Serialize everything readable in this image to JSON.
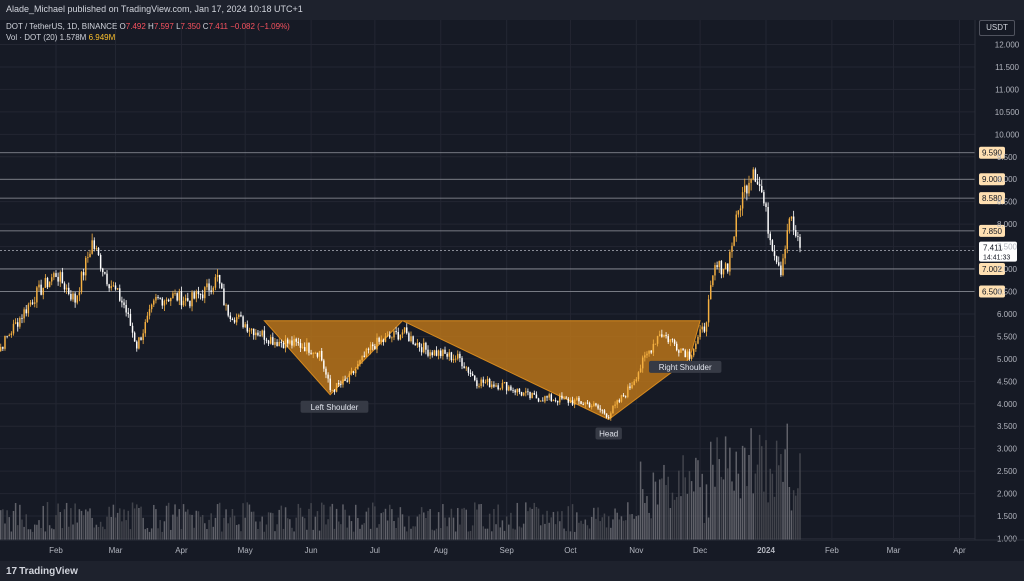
{
  "header": {
    "published": "Alade_Michael published on TradingView.com, Jan 17, 2024 10:18 UTC+1"
  },
  "legend": {
    "symbol": "DOT / TetherUS, 1D, BINANCE",
    "o_label": "O",
    "o_value": "7.492",
    "h_label": "H",
    "h_value": "7.597",
    "l_label": "L",
    "l_value": "7.350",
    "c_label": "C",
    "c_value": "7.411",
    "change": "−0.082 (−1.09%)",
    "vol_label": "Vol · DOT (20)",
    "vol_value": "1.578M",
    "vol_ma": "6.949M"
  },
  "currency_button": "USDT",
  "footer": {
    "brand": "TradingView",
    "brand_mark": "17"
  },
  "colors": {
    "bg": "#161a25",
    "up": "#f5b041",
    "down": "#ffffff",
    "pattern_fill": "#b8741a",
    "level_line": "#9598a1",
    "price_tag_bg": "#ffe0b2",
    "current_price_bg": "#ffffff"
  },
  "chart_data": {
    "type": "candlestick",
    "symbol": "DOT / TetherUS",
    "interval": "1D",
    "ylim": [
      1.0,
      12.0
    ],
    "y_ticks": [
      "12.000",
      "11.500",
      "11.000",
      "10.500",
      "10.000",
      "9.500",
      "9.000",
      "8.500",
      "8.000",
      "7.500",
      "7.000",
      "6.500",
      "6.000",
      "5.500",
      "5.000",
      "4.500",
      "4.000",
      "3.500",
      "3.000",
      "2.500",
      "2.000",
      "1.500",
      "1.000"
    ],
    "x_ticks": [
      "Feb",
      "Mar",
      "Apr",
      "May",
      "Jun",
      "Jul",
      "Aug",
      "Sep",
      "Oct",
      "Nov",
      "Dec",
      "2024",
      "Feb",
      "Mar",
      "Apr"
    ],
    "horizontal_levels": [
      {
        "value": 9.59,
        "label": "9.590"
      },
      {
        "value": 9.0,
        "label": "9.000"
      },
      {
        "value": 8.58,
        "label": "8.580"
      },
      {
        "value": 7.85,
        "label": "7.850"
      },
      {
        "value": 7.002,
        "label": "7.002"
      },
      {
        "value": 6.5,
        "label": "6.500"
      }
    ],
    "current_price": {
      "value": 7.411,
      "label": "7.411",
      "countdown": "14:41:33"
    },
    "pattern": {
      "name": "inverse head and shoulders",
      "annotations": [
        "Left Shoulder",
        "Head",
        "Right Shoulder"
      ],
      "points": [
        {
          "date": "2023-05-10",
          "price": 5.85
        },
        {
          "date": "2023-06-10",
          "price": 4.2
        },
        {
          "date": "2023-07-14",
          "price": 5.85
        },
        {
          "date": "2023-10-19",
          "price": 3.65
        },
        {
          "date": "2023-11-26",
          "price": 5.0
        },
        {
          "date": "2023-12-01",
          "price": 5.85
        }
      ]
    },
    "path_anchors": [
      {
        "date": "2023-01-01",
        "price": 4.9
      },
      {
        "date": "2023-01-12",
        "price": 5.7
      },
      {
        "date": "2023-01-22",
        "price": 6.4
      },
      {
        "date": "2023-02-01",
        "price": 6.9
      },
      {
        "date": "2023-02-10",
        "price": 6.3
      },
      {
        "date": "2023-02-18",
        "price": 7.6
      },
      {
        "date": "2023-02-25",
        "price": 6.8
      },
      {
        "date": "2023-03-05",
        "price": 6.2
      },
      {
        "date": "2023-03-11",
        "price": 5.3
      },
      {
        "date": "2023-03-20",
        "price": 6.3
      },
      {
        "date": "2023-03-28",
        "price": 6.4
      },
      {
        "date": "2023-04-05",
        "price": 6.3
      },
      {
        "date": "2023-04-12",
        "price": 6.5
      },
      {
        "date": "2023-04-18",
        "price": 6.8
      },
      {
        "date": "2023-04-22",
        "price": 6.1
      },
      {
        "date": "2023-05-03",
        "price": 5.7
      },
      {
        "date": "2023-05-15",
        "price": 5.4
      },
      {
        "date": "2023-05-28",
        "price": 5.3
      },
      {
        "date": "2023-06-05",
        "price": 5.15
      },
      {
        "date": "2023-06-10",
        "price": 4.3
      },
      {
        "date": "2023-06-18",
        "price": 4.5
      },
      {
        "date": "2023-06-30",
        "price": 5.3
      },
      {
        "date": "2023-07-14",
        "price": 5.6
      },
      {
        "date": "2023-07-25",
        "price": 5.2
      },
      {
        "date": "2023-08-10",
        "price": 5.0
      },
      {
        "date": "2023-08-18",
        "price": 4.5
      },
      {
        "date": "2023-09-01",
        "price": 4.4
      },
      {
        "date": "2023-09-12",
        "price": 4.15
      },
      {
        "date": "2023-09-25",
        "price": 4.1
      },
      {
        "date": "2023-10-10",
        "price": 4.0
      },
      {
        "date": "2023-10-19",
        "price": 3.75
      },
      {
        "date": "2023-10-28",
        "price": 4.3
      },
      {
        "date": "2023-11-05",
        "price": 5.0
      },
      {
        "date": "2023-11-12",
        "price": 5.6
      },
      {
        "date": "2023-11-20",
        "price": 5.3
      },
      {
        "date": "2023-11-26",
        "price": 5.1
      },
      {
        "date": "2023-12-03",
        "price": 5.7
      },
      {
        "date": "2023-12-08",
        "price": 7.0
      },
      {
        "date": "2023-12-14",
        "price": 7.1
      },
      {
        "date": "2023-12-20",
        "price": 8.5
      },
      {
        "date": "2023-12-26",
        "price": 9.3
      },
      {
        "date": "2023-12-30",
        "price": 8.7
      },
      {
        "date": "2024-01-03",
        "price": 7.7
      },
      {
        "date": "2024-01-08",
        "price": 7.0
      },
      {
        "date": "2024-01-12",
        "price": 8.2
      },
      {
        "date": "2024-01-17",
        "price": 7.41
      }
    ]
  }
}
